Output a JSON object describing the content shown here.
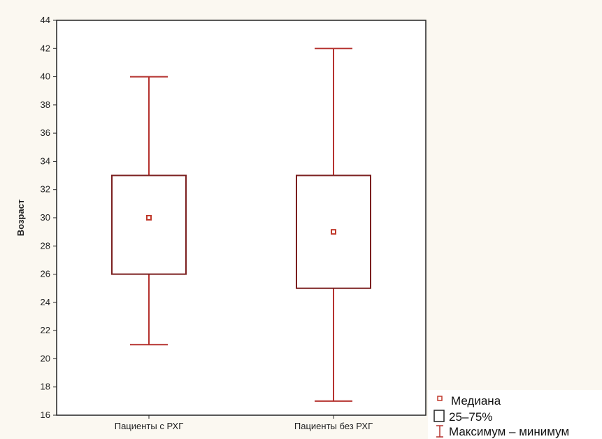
{
  "chart_data": {
    "type": "boxplot",
    "ylabel": "Возраст",
    "xlabel": "",
    "ylim": [
      16,
      44
    ],
    "yticks": [
      16,
      18,
      20,
      22,
      24,
      26,
      28,
      30,
      32,
      34,
      36,
      38,
      40,
      42,
      44
    ],
    "grid": false,
    "categories": [
      "Пациенты с РХГ",
      "Пациенты без РХГ"
    ],
    "series": [
      {
        "category": "Пациенты с РХГ",
        "min": 21,
        "q1": 26,
        "median": 30,
        "q3": 33,
        "max": 40
      },
      {
        "category": "Пациенты без РХГ",
        "min": 17,
        "q1": 25,
        "median": 29,
        "q3": 33,
        "max": 42
      }
    ],
    "legend": {
      "position": "bottom-right",
      "entries": [
        "Медиана",
        "25–75%",
        "Максимум – минимум"
      ]
    },
    "colors": {
      "box": "#7b1f1f",
      "whisker": "#b5322f",
      "median": "#c0392b",
      "frame": "#222222",
      "background": "#fbf8f1"
    }
  }
}
